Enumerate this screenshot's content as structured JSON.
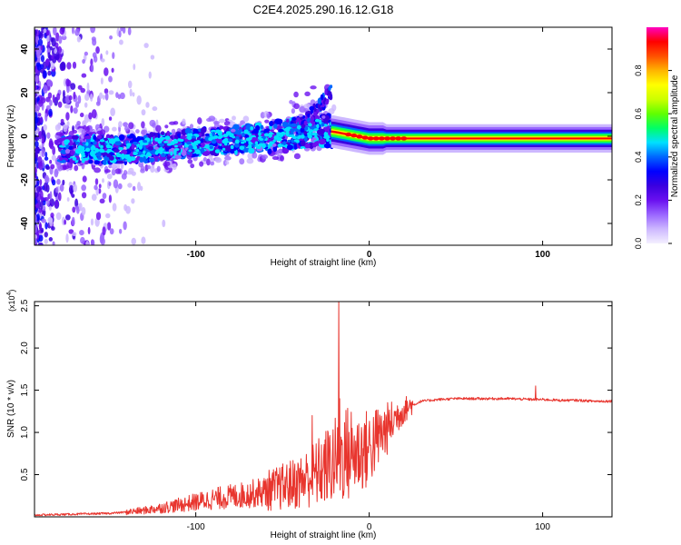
{
  "title": "C2E4.2025.290.16.12.G18",
  "chart_data": [
    {
      "type": "heatmap",
      "xlabel": "Height of straight line (km)",
      "ylabel": "Frequency (Hz)",
      "xlim": [
        -193,
        140
      ],
      "ylim": [
        -50,
        50
      ],
      "xticks": [
        -100,
        0,
        100
      ],
      "yticks": [
        -40,
        -20,
        0,
        20,
        40
      ],
      "colorbar": {
        "label": "Normalized spectral amplitude",
        "range": [
          0,
          1
        ],
        "ticks": [
          0.0,
          0.2,
          0.4,
          0.6,
          0.8
        ],
        "colors": [
          "#f4f0ff",
          "#cdb8ff",
          "#9a66ff",
          "#6a10f0",
          "#3a00e0",
          "#0000ff",
          "#0066ff",
          "#00e0ff",
          "#00ff66",
          "#60ff00",
          "#ccff00",
          "#ffff00",
          "#ffb400",
          "#ff5000",
          "#ff0000",
          "#ff00c0"
        ]
      },
      "ridge": [
        {
          "x": -170,
          "f": -6
        },
        {
          "x": -140,
          "f": -6
        },
        {
          "x": -110,
          "f": -4
        },
        {
          "x": -90,
          "f": -2
        },
        {
          "x": -70,
          "f": -1
        },
        {
          "x": -50,
          "f": 0
        },
        {
          "x": -30,
          "f": 3
        },
        {
          "x": -20,
          "f": 2
        },
        {
          "x": 0,
          "f": -1
        },
        {
          "x": 40,
          "f": -1
        },
        {
          "x": 100,
          "f": -1
        },
        {
          "x": 140,
          "f": -1
        }
      ]
    },
    {
      "type": "line",
      "xlabel": "Height of straight line (km)",
      "ylabel": "SNR (10 * v/v)",
      "scale_label": "(x10",
      "scale_exp": "4",
      "xlim": [
        -193,
        140
      ],
      "ylim": [
        0,
        2.55
      ],
      "xticks": [
        -100,
        0,
        100
      ],
      "yticks": [
        0.5,
        1.0,
        1.5,
        2.0,
        2.5
      ],
      "series": [
        {
          "name": "SNR",
          "color": "#e8352e",
          "x": [
            -193,
            -170,
            -150,
            -130,
            -110,
            -90,
            -70,
            -55,
            -40,
            -30,
            -22,
            -15,
            -10,
            -5,
            0,
            5,
            10,
            15,
            20,
            25,
            30,
            40,
            50,
            60,
            80,
            95,
            100,
            110,
            120,
            130,
            140
          ],
          "y": [
            0.02,
            0.03,
            0.04,
            0.07,
            0.13,
            0.2,
            0.25,
            0.3,
            0.38,
            0.48,
            0.58,
            0.68,
            0.7,
            0.72,
            0.76,
            0.9,
            1.0,
            1.15,
            1.25,
            1.32,
            1.37,
            1.39,
            1.4,
            1.4,
            1.4,
            1.39,
            1.39,
            1.38,
            1.38,
            1.37,
            1.37
          ]
        }
      ],
      "spikes": [
        {
          "x": -17.5,
          "y": 2.58
        },
        {
          "x": -17.0,
          "y": 1.4
        },
        {
          "x": -33,
          "y": 1.2
        },
        {
          "x": 96,
          "y": 1.55
        }
      ]
    }
  ]
}
